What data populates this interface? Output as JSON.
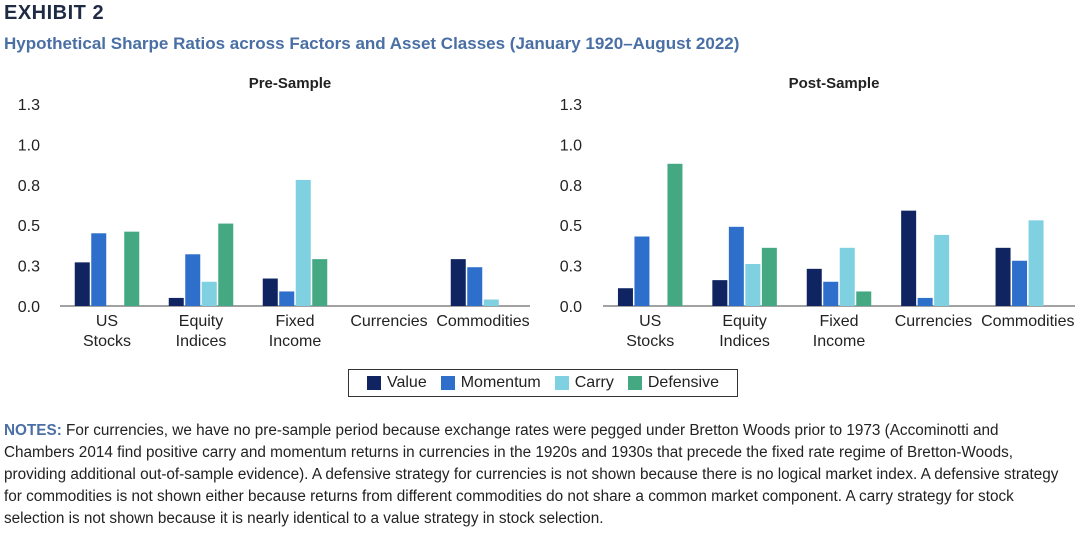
{
  "exhibit": "EXHIBIT 2",
  "subtitle": "Hypothetical Sharpe Ratios across Factors and Asset Classes (January 1920–August 2022)",
  "legend": [
    {
      "name": "Value",
      "color": "#0f2460"
    },
    {
      "name": "Momentum",
      "color": "#2f6fcc"
    },
    {
      "name": "Carry",
      "color": "#7fd0e0"
    },
    {
      "name": "Defensive",
      "color": "#44a882"
    }
  ],
  "notes": {
    "label": "NOTES:",
    "text": " For currencies, we have no pre-sample period because exchange rates were pegged under Bretton Woods prior to 1973 (Accominotti and Chambers 2014 find positive carry and momentum returns in currencies in the 1920s and 1930s that precede the fixed rate regime of Bretton-Woods, providing additional out-of-sample evidence). A defensive strategy for currencies is not shown because there is no logical market index. A defensive strategy for commodities is not shown either because returns from different commodities do not share a common market component. A carry strategy for stock selection is not shown because it is nearly identical to a value strategy in stock selection."
  },
  "chart_data": [
    {
      "type": "bar",
      "title": "Pre-Sample",
      "categories": [
        [
          "US",
          "Stocks"
        ],
        [
          "Equity",
          "Indices"
        ],
        [
          "Fixed",
          "Income"
        ],
        [
          "Currencies"
        ],
        [
          "Commodities"
        ]
      ],
      "ylim": [
        0,
        1.25
      ],
      "yticks": [
        "0.0",
        "0.3",
        "0.5",
        "0.8",
        "1.0",
        "1.3"
      ],
      "series": [
        {
          "name": "Value",
          "values": [
            0.27,
            0.05,
            0.17,
            null,
            0.29
          ]
        },
        {
          "name": "Momentum",
          "values": [
            0.45,
            0.32,
            0.09,
            null,
            0.24
          ]
        },
        {
          "name": "Carry",
          "values": [
            null,
            0.15,
            0.78,
            null,
            0.04
          ]
        },
        {
          "name": "Defensive",
          "values": [
            0.46,
            0.51,
            0.29,
            null,
            null
          ]
        }
      ]
    },
    {
      "type": "bar",
      "title": "Post-Sample",
      "categories": [
        [
          "US",
          "Stocks"
        ],
        [
          "Equity",
          "Indices"
        ],
        [
          "Fixed",
          "Income"
        ],
        [
          "Currencies"
        ],
        [
          "Commodities"
        ]
      ],
      "ylim": [
        0,
        1.25
      ],
      "yticks": [
        "0.0",
        "0.3",
        "0.5",
        "0.8",
        "1.0",
        "1.3"
      ],
      "series": [
        {
          "name": "Value",
          "values": [
            0.11,
            0.16,
            0.23,
            0.59,
            0.36
          ]
        },
        {
          "name": "Momentum",
          "values": [
            0.43,
            0.49,
            0.15,
            0.05,
            0.28
          ]
        },
        {
          "name": "Carry",
          "values": [
            null,
            0.26,
            0.36,
            0.44,
            0.53
          ]
        },
        {
          "name": "Defensive",
          "values": [
            0.88,
            0.36,
            0.09,
            null,
            null
          ]
        }
      ]
    }
  ]
}
